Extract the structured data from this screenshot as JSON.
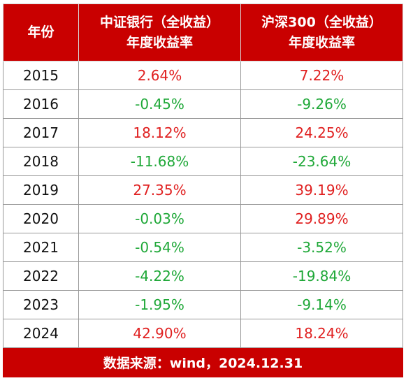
{
  "header": {
    "col_year": "年份",
    "col_csi_bank": [
      "中证银行（全收益）",
      "年度收益率"
    ],
    "col_csi300": [
      "沪深300（全收益）",
      "年度收益率"
    ]
  },
  "colors": {
    "header_bg": "#c90000",
    "positive": "#e02020",
    "negative": "#1fa838"
  },
  "rows": [
    {
      "year": "2015",
      "bank": "2.64%",
      "csi300": "7.22%"
    },
    {
      "year": "2016",
      "bank": "-0.45%",
      "csi300": "-9.26%"
    },
    {
      "year": "2017",
      "bank": "18.12%",
      "csi300": "24.25%"
    },
    {
      "year": "2018",
      "bank": "-11.68%",
      "csi300": "-23.64%"
    },
    {
      "year": "2019",
      "bank": "27.35%",
      "csi300": "39.19%"
    },
    {
      "year": "2020",
      "bank": "-0.03%",
      "csi300": "29.89%"
    },
    {
      "year": "2021",
      "bank": "-0.54%",
      "csi300": "-3.52%"
    },
    {
      "year": "2022",
      "bank": "-4.22%",
      "csi300": "-19.84%"
    },
    {
      "year": "2023",
      "bank": "-1.95%",
      "csi300": "-9.14%"
    },
    {
      "year": "2024",
      "bank": "42.90%",
      "csi300": "18.24%"
    }
  ],
  "footer": {
    "source": "数据来源：wind，2024.12.31"
  }
}
